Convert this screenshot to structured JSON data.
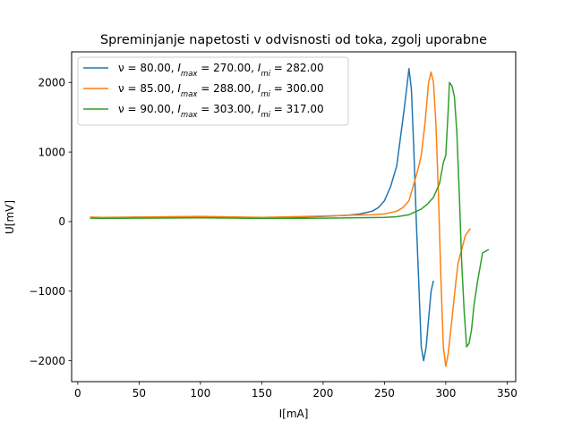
{
  "chart_data": {
    "type": "line",
    "title": "Spreminjanje napetosti v odvisnosti od toka, zgolj uporabne",
    "xlabel": "I[mA]",
    "ylabel": "U[mV]",
    "xlim": [
      -5,
      357
    ],
    "ylim": [
      -2300,
      2440
    ],
    "xticks": [
      0,
      50,
      100,
      150,
      200,
      250,
      300,
      350
    ],
    "yticks": [
      -2000,
      -1000,
      0,
      1000,
      2000
    ],
    "grid": false,
    "legend_position": "upper-left",
    "series": [
      {
        "name": "ν=80.00, Imax=270.00, Imi=282.00",
        "legend": {
          "prefix": "ν = 80.00, ",
          "max": " = 270.00, ",
          "mi": " = 282.00"
        },
        "color": "#1f77b4",
        "x": [
          10,
          20,
          50,
          100,
          150,
          200,
          220,
          230,
          240,
          245,
          250,
          255,
          260,
          263,
          266,
          268,
          270,
          272,
          274,
          276,
          278,
          280,
          282,
          284,
          286,
          288,
          290
        ],
        "y": [
          60,
          55,
          65,
          70,
          50,
          75,
          90,
          110,
          150,
          200,
          300,
          500,
          800,
          1200,
          1600,
          1900,
          2200,
          1900,
          1000,
          0,
          -900,
          -1800,
          -2000,
          -1800,
          -1400,
          -1000,
          -850
        ]
      },
      {
        "name": "ν=85.00, Imax=288.00, Imi=300.00",
        "legend": {
          "prefix": "ν = 85.00, ",
          "max": " = 288.00, ",
          "mi": " = 300.00"
        },
        "color": "#ff7f0e",
        "x": [
          10,
          20,
          50,
          100,
          150,
          200,
          220,
          240,
          250,
          260,
          265,
          270,
          275,
          278,
          280,
          283,
          286,
          288,
          290,
          292,
          294,
          296,
          298,
          300,
          302,
          305,
          308,
          310,
          313,
          316,
          320
        ],
        "y": [
          65,
          60,
          65,
          75,
          60,
          80,
          90,
          100,
          110,
          150,
          200,
          300,
          600,
          800,
          950,
          1400,
          2000,
          2150,
          2000,
          1400,
          400,
          -800,
          -1800,
          -2080,
          -1900,
          -1400,
          -900,
          -600,
          -400,
          -200,
          -100
        ]
      },
      {
        "name": "ν=90.00, Imax=303.00, Imi=317.00",
        "legend": {
          "prefix": "ν = 90.00, ",
          "max": " = 303.00, ",
          "mi": " = 317.00"
        },
        "color": "#2ca02c",
        "x": [
          10,
          20,
          50,
          100,
          150,
          200,
          250,
          260,
          270,
          280,
          285,
          290,
          295,
          298,
          300,
          302,
          303,
          305,
          307,
          309,
          311,
          313,
          315,
          317,
          319,
          321,
          323,
          326,
          330,
          335
        ],
        "y": [
          50,
          45,
          50,
          55,
          45,
          50,
          60,
          70,
          100,
          180,
          250,
          350,
          550,
          850,
          950,
          1600,
          2000,
          1950,
          1800,
          1300,
          400,
          -600,
          -1300,
          -1800,
          -1750,
          -1550,
          -1200,
          -850,
          -450,
          -400
        ]
      }
    ]
  }
}
